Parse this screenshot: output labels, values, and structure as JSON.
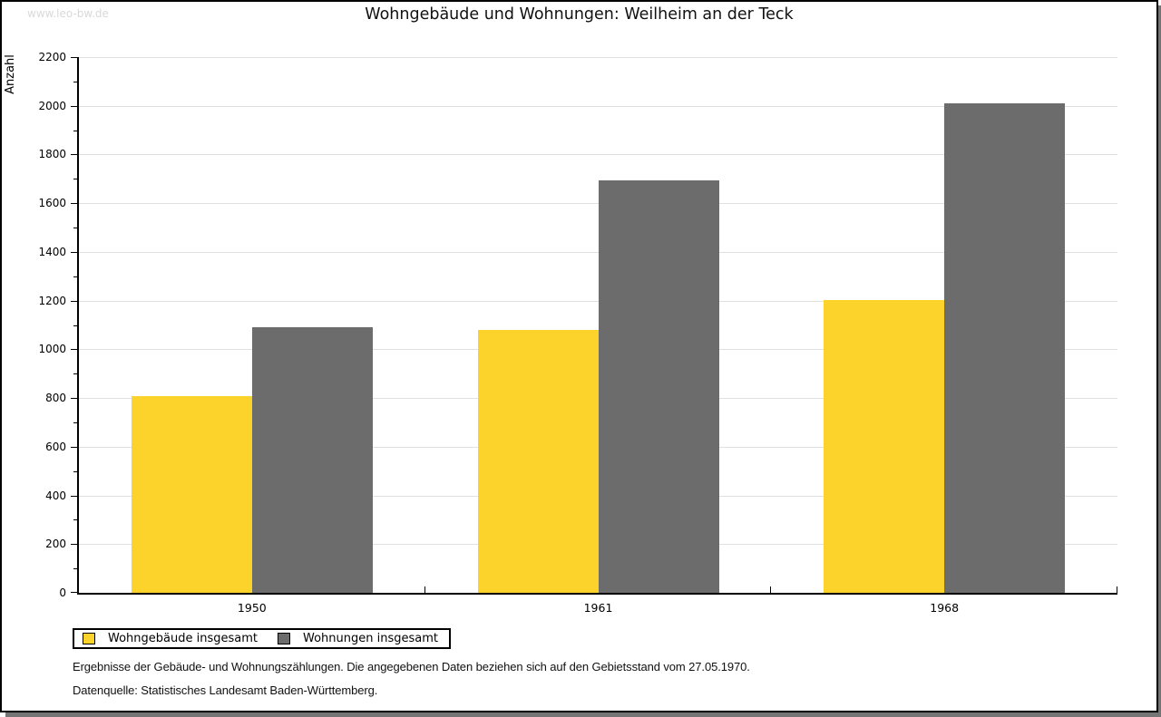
{
  "watermark": {
    "text": "www.leo-bw.de"
  },
  "notes": {
    "line1": "Ergebnisse der Gebäude- und Wohnungszählungen. Die angegebenen Daten beziehen sich auf den Gebietsstand vom 27.05.1970.",
    "line2": "Datenquelle: Statistisches Landesamt Baden-Württemberg."
  },
  "colors": {
    "bar_yellow": "#fcd32b",
    "bar_gray": "#6c6c6c",
    "gridline": "#e0e0e0",
    "watermark": "#d9d9d9",
    "card_shadow": "#757575"
  },
  "chart_data": {
    "type": "bar",
    "title": "Wohngebäude und Wohnungen: Weilheim an der Teck",
    "ylabel": "Anzahl",
    "xlabel": "",
    "categories": [
      "1950",
      "1961",
      "1968"
    ],
    "series": [
      {
        "name": "Wohngebäude insgesamt",
        "color": "#fcd32b",
        "values": [
          808,
          1080,
          1202
        ]
      },
      {
        "name": "Wohnungen insgesamt",
        "color": "#6c6c6c",
        "values": [
          1090,
          1695,
          2012
        ]
      }
    ],
    "ylim": [
      0,
      2200
    ],
    "ytick_major_step": 200,
    "ytick_minor_step": 100,
    "grid": true,
    "legend_position": "bottom-left"
  }
}
